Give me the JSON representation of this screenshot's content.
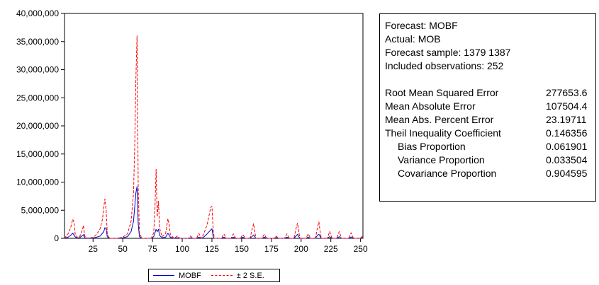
{
  "chart_data": {
    "type": "line",
    "ylim": [
      0,
      40000000
    ],
    "xlim": [
      1,
      252
    ],
    "yticks": [
      "0",
      "5,000,000",
      "10,000,000",
      "15,000,000",
      "20,000,000",
      "25,000,000",
      "30,000,000",
      "35,000,000",
      "40,000,000"
    ],
    "xticks": [
      25,
      50,
      75,
      100,
      125,
      150,
      175,
      200,
      225,
      250
    ],
    "series": [
      {
        "name": "MOBF",
        "color": "#0000cc",
        "style": "solid",
        "points": [
          [
            1,
            0
          ],
          [
            4,
            200000
          ],
          [
            6,
            500000
          ],
          [
            8,
            900000
          ],
          [
            10,
            250000
          ],
          [
            12,
            50000
          ],
          [
            14,
            150000
          ],
          [
            17,
            650000
          ],
          [
            18,
            100000
          ],
          [
            20,
            20000
          ],
          [
            25,
            50000
          ],
          [
            28,
            200000
          ],
          [
            31,
            400000
          ],
          [
            34,
            1200000
          ],
          [
            35,
            1900000
          ],
          [
            36,
            1700000
          ],
          [
            37,
            250000
          ],
          [
            39,
            0
          ],
          [
            45,
            0
          ],
          [
            50,
            80000
          ],
          [
            54,
            300000
          ],
          [
            57,
            1200000
          ],
          [
            59,
            3000000
          ],
          [
            60,
            5500000
          ],
          [
            61,
            8000000
          ],
          [
            62,
            9200000
          ],
          [
            63,
            2500000
          ],
          [
            64,
            300000
          ],
          [
            66,
            0
          ],
          [
            74,
            0
          ],
          [
            76,
            300000
          ],
          [
            78,
            1600000
          ],
          [
            79,
            1200000
          ],
          [
            80,
            1600000
          ],
          [
            81,
            500000
          ],
          [
            83,
            100000
          ],
          [
            86,
            200000
          ],
          [
            88,
            900000
          ],
          [
            90,
            200000
          ],
          [
            93,
            0
          ],
          [
            96,
            100000
          ],
          [
            98,
            0
          ],
          [
            105,
            0
          ],
          [
            107,
            80000
          ],
          [
            109,
            0
          ],
          [
            112,
            0
          ],
          [
            114,
            200000
          ],
          [
            116,
            0
          ],
          [
            118,
            200000
          ],
          [
            121,
            800000
          ],
          [
            124,
            1500000
          ],
          [
            125,
            1700000
          ],
          [
            126,
            300000
          ],
          [
            127,
            0
          ],
          [
            133,
            0
          ],
          [
            135,
            200000
          ],
          [
            137,
            0
          ],
          [
            141,
            0
          ],
          [
            143,
            200000
          ],
          [
            145,
            0
          ],
          [
            149,
            0
          ],
          [
            151,
            200000
          ],
          [
            153,
            0
          ],
          [
            157,
            0
          ],
          [
            159,
            400000
          ],
          [
            160,
            600000
          ],
          [
            162,
            0
          ],
          [
            167,
            0
          ],
          [
            169,
            200000
          ],
          [
            171,
            0
          ],
          [
            177,
            0
          ],
          [
            179,
            150000
          ],
          [
            181,
            0
          ],
          [
            186,
            0
          ],
          [
            188,
            200000
          ],
          [
            190,
            0
          ],
          [
            194,
            0
          ],
          [
            196,
            500000
          ],
          [
            197,
            700000
          ],
          [
            199,
            0
          ],
          [
            204,
            0
          ],
          [
            206,
            200000
          ],
          [
            208,
            0
          ],
          [
            212,
            0
          ],
          [
            214,
            600000
          ],
          [
            215,
            700000
          ],
          [
            217,
            0
          ],
          [
            222,
            0
          ],
          [
            224,
            300000
          ],
          [
            226,
            0
          ],
          [
            230,
            0
          ],
          [
            232,
            300000
          ],
          [
            234,
            0
          ],
          [
            240,
            0
          ],
          [
            242,
            250000
          ],
          [
            244,
            0
          ],
          [
            250,
            0
          ],
          [
            251,
            150000
          ],
          [
            252,
            0
          ]
        ]
      },
      {
        "name": "± 2 S.E.",
        "color": "#ff0000",
        "style": "dashed",
        "points": [
          [
            1,
            0
          ],
          [
            4,
            800000
          ],
          [
            6,
            1800000
          ],
          [
            8,
            3400000
          ],
          [
            9,
            2800000
          ],
          [
            10,
            700000
          ],
          [
            12,
            100000
          ],
          [
            14,
            400000
          ],
          [
            16,
            1500000
          ],
          [
            17,
            2300000
          ],
          [
            18,
            400000
          ],
          [
            20,
            50000
          ],
          [
            25,
            150000
          ],
          [
            28,
            700000
          ],
          [
            31,
            1700000
          ],
          [
            33,
            3500000
          ],
          [
            34,
            5600000
          ],
          [
            35,
            7000000
          ],
          [
            36,
            5000000
          ],
          [
            37,
            700000
          ],
          [
            39,
            0
          ],
          [
            45,
            0
          ],
          [
            50,
            200000
          ],
          [
            54,
            800000
          ],
          [
            57,
            3000000
          ],
          [
            59,
            8000000
          ],
          [
            60,
            16000000
          ],
          [
            61,
            28000000
          ],
          [
            62,
            36000000
          ],
          [
            63,
            9000000
          ],
          [
            64,
            1000000
          ],
          [
            66,
            0
          ],
          [
            74,
            0
          ],
          [
            76,
            1000000
          ],
          [
            77,
            5000000
          ],
          [
            78,
            12300000
          ],
          [
            79,
            3800000
          ],
          [
            80,
            6600000
          ],
          [
            81,
            1800000
          ],
          [
            83,
            300000
          ],
          [
            86,
            800000
          ],
          [
            88,
            3500000
          ],
          [
            89,
            2500000
          ],
          [
            90,
            700000
          ],
          [
            93,
            0
          ],
          [
            96,
            400000
          ],
          [
            98,
            0
          ],
          [
            105,
            0
          ],
          [
            107,
            400000
          ],
          [
            109,
            0
          ],
          [
            112,
            0
          ],
          [
            114,
            900000
          ],
          [
            116,
            0
          ],
          [
            118,
            700000
          ],
          [
            121,
            2500000
          ],
          [
            124,
            5500000
          ],
          [
            125,
            5700000
          ],
          [
            126,
            1500000
          ],
          [
            127,
            0
          ],
          [
            133,
            0
          ],
          [
            135,
            800000
          ],
          [
            137,
            0
          ],
          [
            141,
            0
          ],
          [
            143,
            800000
          ],
          [
            145,
            0
          ],
          [
            149,
            0
          ],
          [
            151,
            700000
          ],
          [
            153,
            0
          ],
          [
            157,
            0
          ],
          [
            159,
            1800000
          ],
          [
            160,
            2600000
          ],
          [
            161,
            1200000
          ],
          [
            162,
            0
          ],
          [
            167,
            0
          ],
          [
            169,
            700000
          ],
          [
            171,
            0
          ],
          [
            177,
            0
          ],
          [
            179,
            400000
          ],
          [
            181,
            0
          ],
          [
            186,
            0
          ],
          [
            188,
            800000
          ],
          [
            190,
            0
          ],
          [
            194,
            0
          ],
          [
            196,
            2000000
          ],
          [
            197,
            2700000
          ],
          [
            198,
            1200000
          ],
          [
            199,
            0
          ],
          [
            204,
            0
          ],
          [
            206,
            800000
          ],
          [
            208,
            0
          ],
          [
            212,
            0
          ],
          [
            214,
            2200000
          ],
          [
            215,
            2900000
          ],
          [
            216,
            1200000
          ],
          [
            217,
            0
          ],
          [
            222,
            0
          ],
          [
            224,
            1200000
          ],
          [
            226,
            0
          ],
          [
            230,
            0
          ],
          [
            232,
            1200000
          ],
          [
            234,
            0
          ],
          [
            240,
            0
          ],
          [
            242,
            1000000
          ],
          [
            244,
            0
          ],
          [
            250,
            0
          ],
          [
            251,
            400000
          ],
          [
            252,
            0
          ]
        ]
      }
    ]
  },
  "legend": {
    "mobf": "MOBF",
    "se": "± 2 S.E."
  },
  "stats": {
    "header": [
      "Forecast: MOBF",
      "Actual: MOB",
      "Forecast sample: 1379 1387",
      "Included observations: 252"
    ],
    "rows": [
      {
        "label": "Root Mean Squared Error",
        "value": "277653.6"
      },
      {
        "label": "Mean Absolute Error",
        "value": "107504.4"
      },
      {
        "label": "Mean Abs. Percent Error",
        "value": "23.19711"
      },
      {
        "label": "Theil Inequality Coefficient",
        "value": "0.146356"
      },
      {
        "label": "Bias Proportion",
        "value": "0.061901"
      },
      {
        "label": "Variance Proportion",
        "value": "0.033504"
      },
      {
        "label": "Covariance Proportion",
        "value": "0.904595"
      }
    ]
  }
}
